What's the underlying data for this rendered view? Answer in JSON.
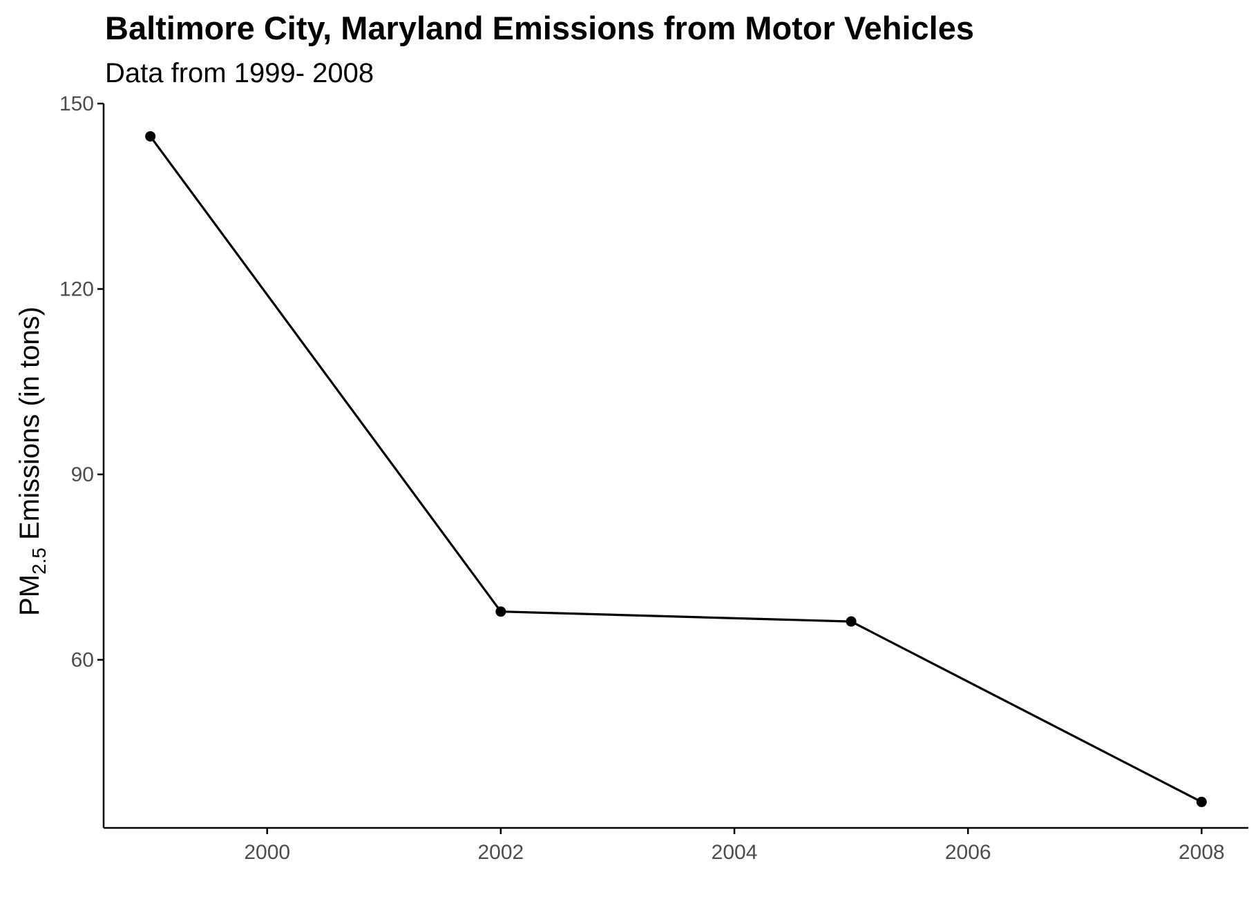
{
  "chart_data": {
    "type": "line",
    "title": "Baltimore City, Maryland Emissions from Motor Vehicles",
    "subtitle": "Data from 1999- 2008",
    "ylabel": {
      "prefix": "PM",
      "subscript": "2.5",
      "suffix": " Emissions (in tons)"
    },
    "xlabel": "",
    "x": [
      1999,
      2002,
      2005,
      2008
    ],
    "y": [
      144.7,
      67.8,
      66.2,
      37.0
    ],
    "xlim": [
      1998.6,
      2008.4
    ],
    "ylim": [
      32.8,
      150
    ],
    "x_ticks": [
      2000,
      2002,
      2004,
      2006,
      2008
    ],
    "y_ticks": [
      60,
      90,
      120,
      150
    ],
    "grid": false,
    "legend": "none",
    "colors": {
      "line": "#000000",
      "axis": "#000000",
      "tick_label": "#4d4d4d"
    }
  }
}
